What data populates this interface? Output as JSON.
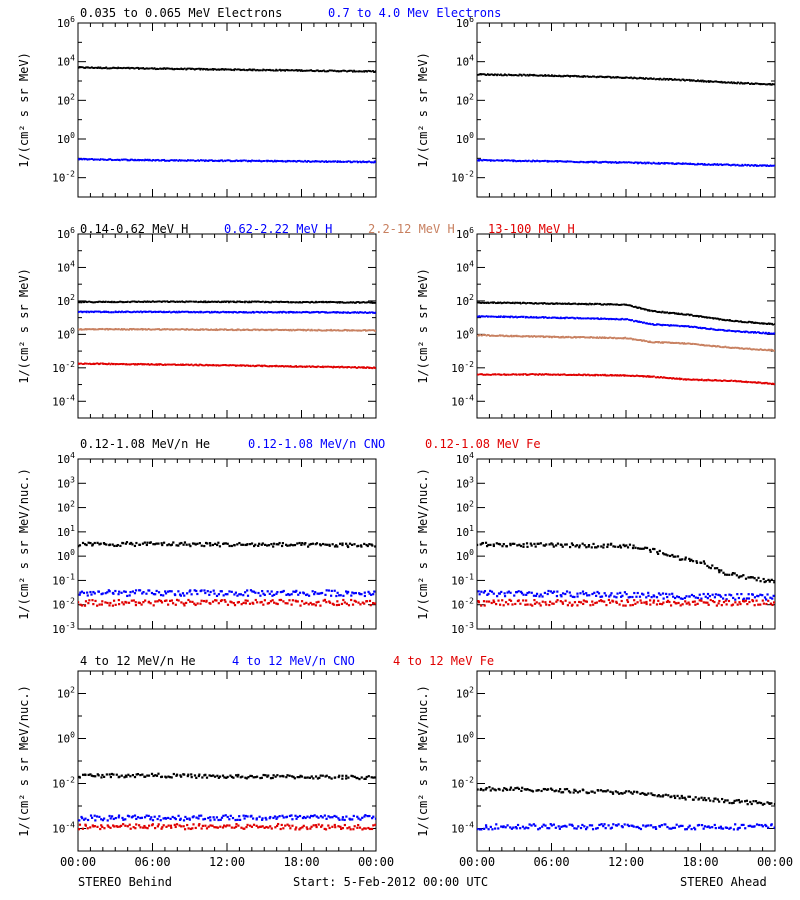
{
  "footer": {
    "left": "STEREO Behind",
    "center": "Start:  5-Feb-2012 00:00 UTC",
    "right": "STEREO Ahead"
  },
  "colors": {
    "black": "#000000",
    "blue": "#0000ff",
    "tan": "#c88060",
    "red": "#e00000"
  },
  "chart_data": [
    {
      "type": "scatter",
      "row": 0,
      "side": "behind",
      "ylabel": "1/(cm² s sr MeV)",
      "log_y": true,
      "ylim_exp": [
        -3,
        6
      ],
      "yticks": [
        "10-2",
        "100",
        "102",
        "104",
        "106"
      ],
      "xticks": [
        "00:00",
        "06:00",
        "12:00",
        "18:00",
        "00:00"
      ],
      "xlim_hours": [
        0,
        24
      ],
      "series": [
        {
          "name": "0.035 to 0.065 MeV Electrons",
          "color": "black",
          "x_hours": [
            0,
            6,
            12,
            18,
            24
          ],
          "y": [
            5000,
            4400,
            3900,
            3500,
            3100
          ]
        },
        {
          "name": "0.7 to 4.0 Mev Electrons",
          "color": "blue",
          "x_hours": [
            0,
            6,
            12,
            18,
            24
          ],
          "y": [
            0.09,
            0.08,
            0.075,
            0.07,
            0.065
          ]
        }
      ]
    },
    {
      "type": "scatter",
      "row": 0,
      "side": "ahead",
      "ylabel": "1/(cm² s sr MeV)",
      "log_y": true,
      "ylim_exp": [
        -3,
        6
      ],
      "yticks": [
        "10-2",
        "100",
        "102",
        "104",
        "106"
      ],
      "xticks": [
        "00:00",
        "06:00",
        "12:00",
        "18:00",
        "00:00"
      ],
      "xlim_hours": [
        0,
        24
      ],
      "series": [
        {
          "color": "black",
          "x_hours": [
            0,
            6,
            12,
            17,
            20,
            24
          ],
          "y": [
            2200,
            1900,
            1500,
            1100,
            850,
            650
          ]
        },
        {
          "color": "blue",
          "x_hours": [
            0,
            6,
            12,
            18,
            24
          ],
          "y": [
            0.08,
            0.07,
            0.06,
            0.05,
            0.04
          ]
        }
      ]
    },
    {
      "type": "scatter",
      "row": 1,
      "side": "behind",
      "ylabel": "1/(cm² s sr MeV)",
      "log_y": true,
      "ylim_exp": [
        -5,
        6
      ],
      "yticks": [
        "10-4",
        "10-2",
        "100",
        "102",
        "104",
        "106"
      ],
      "xticks": [
        "00:00",
        "06:00",
        "12:00",
        "18:00",
        "00:00"
      ],
      "xlim_hours": [
        0,
        24
      ],
      "series": [
        {
          "name": "0.14-0.62 MeV H",
          "color": "black",
          "x_hours": [
            0,
            6,
            12,
            18,
            24
          ],
          "y": [
            85,
            90,
            88,
            85,
            80
          ]
        },
        {
          "name": "0.62-2.22 MeV H",
          "color": "blue",
          "x_hours": [
            0,
            6,
            12,
            18,
            24
          ],
          "y": [
            22,
            22,
            21,
            21,
            20
          ]
        },
        {
          "name": "2.2-12 MeV H",
          "color": "tan",
          "x_hours": [
            0,
            6,
            12,
            18,
            24
          ],
          "y": [
            2.0,
            2.0,
            1.9,
            1.8,
            1.7
          ]
        },
        {
          "name": "13-100 MeV H",
          "color": "red",
          "x_hours": [
            0,
            6,
            12,
            18,
            24
          ],
          "y": [
            0.018,
            0.016,
            0.014,
            0.012,
            0.01
          ]
        }
      ]
    },
    {
      "type": "scatter",
      "row": 1,
      "side": "ahead",
      "ylabel": "1/(cm² s sr MeV)",
      "log_y": true,
      "ylim_exp": [
        -5,
        6
      ],
      "yticks": [
        "10-4",
        "10-2",
        "100",
        "102",
        "104",
        "106"
      ],
      "xticks": [
        "00:00",
        "06:00",
        "12:00",
        "18:00",
        "00:00"
      ],
      "xlim_hours": [
        0,
        24
      ],
      "series": [
        {
          "color": "black",
          "x_hours": [
            0,
            6,
            12,
            14,
            17,
            19,
            21,
            24
          ],
          "y": [
            80,
            70,
            60,
            25,
            15,
            9,
            6,
            4
          ]
        },
        {
          "color": "blue",
          "x_hours": [
            0,
            6,
            12,
            14,
            17,
            19,
            21,
            24
          ],
          "y": [
            12,
            10,
            8,
            4,
            3,
            2,
            1.5,
            1.1
          ]
        },
        {
          "color": "tan",
          "x_hours": [
            0,
            6,
            12,
            14,
            17,
            19,
            21,
            24
          ],
          "y": [
            0.9,
            0.7,
            0.6,
            0.35,
            0.28,
            0.2,
            0.15,
            0.11
          ]
        },
        {
          "color": "red",
          "x_hours": [
            0,
            6,
            12,
            14,
            17,
            19,
            21,
            24
          ],
          "y": [
            0.004,
            0.004,
            0.0035,
            0.003,
            0.002,
            0.0018,
            0.0016,
            0.0011
          ]
        }
      ]
    },
    {
      "type": "scatter",
      "row": 2,
      "side": "behind",
      "ylabel": "1/(cm² s sr MeV/nuc.)",
      "log_y": true,
      "ylim_exp": [
        -3,
        4
      ],
      "yticks": [
        "10-3",
        "10-2",
        "10-1",
        "100",
        "101",
        "102",
        "103",
        "104"
      ],
      "xticks": [
        "00:00",
        "06:00",
        "12:00",
        "18:00",
        "00:00"
      ],
      "xlim_hours": [
        0,
        24
      ],
      "series": [
        {
          "name": "0.12-1.08 MeV/n He",
          "color": "black",
          "x_hours": [
            0,
            6,
            12,
            18,
            24
          ],
          "y": [
            3.0,
            3.2,
            3.0,
            2.9,
            2.8
          ]
        },
        {
          "name": "0.12-1.08 MeV/n CNO",
          "color": "blue",
          "x_hours": [
            0,
            6,
            12,
            18,
            24
          ],
          "y": [
            0.03,
            0.03,
            0.03,
            0.03,
            0.03
          ]
        },
        {
          "name": "0.12-1.08 MeV Fe",
          "color": "red",
          "x_hours": [
            0,
            6,
            12,
            18,
            24
          ],
          "y": [
            0.012,
            0.012,
            0.012,
            0.012,
            0.012
          ]
        }
      ]
    },
    {
      "type": "scatter",
      "row": 2,
      "side": "ahead",
      "ylabel": "1/(cm² s sr MeV/nuc.)",
      "log_y": true,
      "ylim_exp": [
        -3,
        4
      ],
      "yticks": [
        "10-3",
        "10-2",
        "10-1",
        "100",
        "101",
        "102",
        "103",
        "104"
      ],
      "xticks": [
        "00:00",
        "06:00",
        "12:00",
        "18:00",
        "00:00"
      ],
      "xlim_hours": [
        0,
        24
      ],
      "series": [
        {
          "color": "black",
          "x_hours": [
            0,
            6,
            12,
            14,
            16,
            18,
            20,
            22,
            24
          ],
          "y": [
            3.0,
            2.8,
            2.7,
            1.8,
            0.9,
            0.6,
            0.2,
            0.12,
            0.09
          ]
        },
        {
          "color": "blue",
          "x_hours": [
            0,
            6,
            12,
            18,
            24
          ],
          "y": [
            0.03,
            0.028,
            0.025,
            0.022,
            0.02
          ]
        },
        {
          "color": "red",
          "x_hours": [
            0,
            6,
            12,
            18,
            24
          ],
          "y": [
            0.012,
            0.012,
            0.012,
            0.012,
            0.012
          ]
        }
      ]
    },
    {
      "type": "scatter",
      "row": 3,
      "side": "behind",
      "ylabel": "1/(cm² s sr MeV/nuc.)",
      "log_y": true,
      "ylim_exp": [
        -5,
        3
      ],
      "yticks": [
        "10-4",
        "10-2",
        "100",
        "102"
      ],
      "xticks": [
        "00:00",
        "06:00",
        "12:00",
        "18:00",
        "00:00"
      ],
      "xlim_hours": [
        0,
        24
      ],
      "series": [
        {
          "name": "4 to 12 MeV/n He",
          "color": "black",
          "x_hours": [
            0,
            6,
            12,
            18,
            24
          ],
          "y": [
            0.022,
            0.023,
            0.02,
            0.02,
            0.018
          ]
        },
        {
          "name": "4 to 12 MeV/n CNO",
          "color": "blue",
          "x_hours": [
            0,
            6,
            12,
            18,
            24
          ],
          "y": [
            0.0003,
            0.0003,
            0.0003,
            0.0003,
            0.0003
          ]
        },
        {
          "name": "4 to 12 MeV Fe",
          "color": "red",
          "x_hours": [
            0,
            6,
            12,
            18,
            24
          ],
          "y": [
            0.00012,
            0.00012,
            0.00012,
            0.00012,
            0.00012
          ]
        }
      ]
    },
    {
      "type": "scatter",
      "row": 3,
      "side": "ahead",
      "ylabel": "1/(cm² s sr MeV/nuc.)",
      "log_y": true,
      "ylim_exp": [
        -5,
        3
      ],
      "yticks": [
        "10-4",
        "10-2",
        "100",
        "102"
      ],
      "xticks": [
        "00:00",
        "06:00",
        "12:00",
        "18:00",
        "00:00"
      ],
      "xlim_hours": [
        0,
        24
      ],
      "series": [
        {
          "color": "black",
          "x_hours": [
            0,
            6,
            12,
            18,
            24
          ],
          "y": [
            0.006,
            0.005,
            0.004,
            0.002,
            0.0012
          ]
        },
        {
          "color": "blue",
          "x_hours": [
            0,
            6,
            12,
            18,
            24
          ],
          "y": [
            0.00012,
            0.00012,
            0.00012,
            0.00012,
            0.00012
          ]
        }
      ]
    }
  ]
}
